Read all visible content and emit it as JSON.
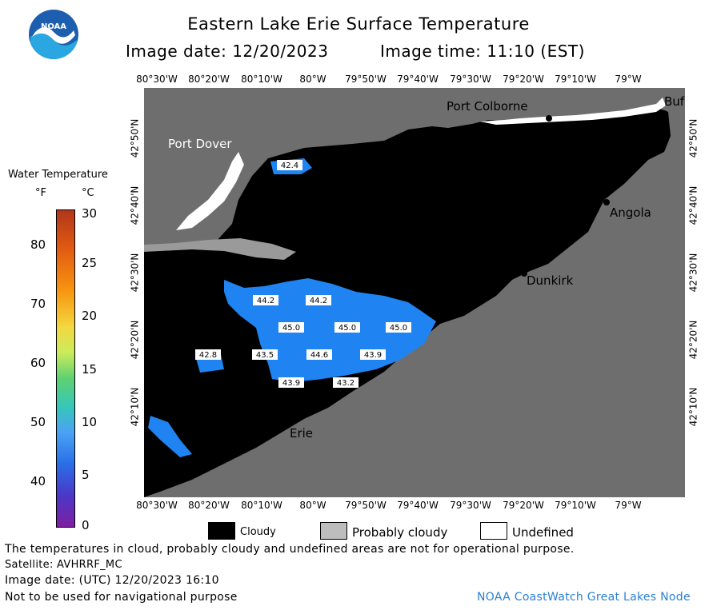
{
  "title": "Eastern Lake Erie Surface Temperature",
  "subtitle_date": "Image date: 12/20/2023",
  "subtitle_time": "Image time: 11:10 (EST)",
  "logo_text": "NOAA",
  "lon_ticks": [
    "80°30'W",
    "80°20'W",
    "80°10'W",
    "80°W",
    "79°50'W",
    "79°40'W",
    "79°30'W",
    "79°20'W",
    "79°10'W",
    "79°W"
  ],
  "lat_ticks": [
    "42°50'N",
    "42°40'N",
    "42°30'N",
    "42°20'N",
    "42°10'N"
  ],
  "places": {
    "port_dover": "Port Dover",
    "port_colborne": "Port Colborne",
    "buffalo": "Buf",
    "angola": "Angola",
    "dunkirk": "Dunkirk",
    "erie": "Erie"
  },
  "temp_labels": [
    "42.4",
    "44.2",
    "44.2",
    "45.0",
    "45.0",
    "45.0",
    "42.8",
    "43.5",
    "44.6",
    "43.9",
    "43.9",
    "43.2"
  ],
  "colorbar": {
    "title": "Water Temperature",
    "unit_f": "°F",
    "unit_c": "°C",
    "f_ticks": [
      "80",
      "70",
      "60",
      "50",
      "40"
    ],
    "c_ticks": [
      "30",
      "25",
      "20",
      "15",
      "10",
      "5",
      "0"
    ]
  },
  "key": {
    "cloudy": "Cloudy",
    "probably_cloudy": "Probably cloudy",
    "undefined": "Undefined",
    "colors": {
      "cloudy": "#000000",
      "probably_cloudy": "#bdbdbd",
      "undefined": "#ffffff"
    }
  },
  "colors": {
    "land": "#6e6e6e",
    "water_warm": "#1a7fef",
    "cloud": "#000000"
  },
  "footer": {
    "disclaimer": "The temperatures in cloud, probably cloudy and undefined areas are not for operational purpose.",
    "satellite": "Satellite: AVHRRF_MC",
    "utc_date": "Image date: (UTC) 12/20/2023  16:10",
    "nav_note": "Not to be used for navigational purpose",
    "credit": "NOAA CoastWatch Great Lakes Node"
  }
}
